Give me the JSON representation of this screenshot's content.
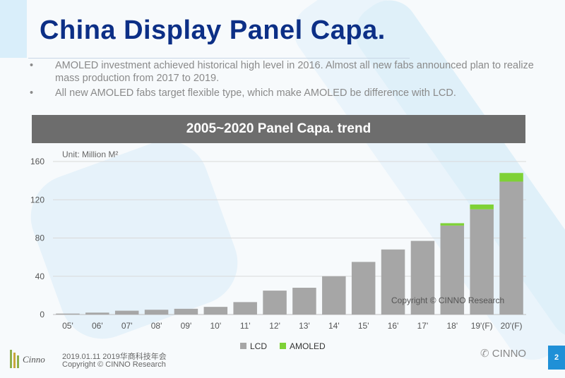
{
  "slide": {
    "title": "China Display Panel Capa.",
    "bullets": [
      "AMOLED investment achieved historical high level in 2016. Almost all new fabs announced plan to realize mass production from 2017 to 2019.",
      "All new AMOLED fabs target flexible type, which make AMOLED be difference with LCD."
    ],
    "bullet_marker": "•",
    "banner": "2005~2020 Panel Capa. trend",
    "unit": "Unit: Million M²",
    "watermark": "Copyright © CINNO Research",
    "footer_brand": "Cinno",
    "footer_date": "2019.01.11  2019华商科技年会",
    "footer_copyright": "Copyright © CINNO Research",
    "wechat_label": "CINNO",
    "page_number": "2"
  },
  "colors": {
    "title": "#0c2f86",
    "lcd": "#a6a6a6",
    "amoled": "#7ed136",
    "banner": "#6d6d6d",
    "accent": "#1f90d7"
  },
  "chart_data": {
    "type": "bar",
    "stacked": true,
    "title": "2005~2020 Panel Capa. trend",
    "unit": "Million M²",
    "categories": [
      "05'",
      "06'",
      "07'",
      "08'",
      "09'",
      "10'",
      "11'",
      "12'",
      "13'",
      "14'",
      "15'",
      "16'",
      "17'",
      "18'",
      "19'(F)",
      "20'(F)"
    ],
    "series": [
      {
        "name": "LCD",
        "color": "#a6a6a6",
        "values": [
          1,
          2,
          4,
          5,
          6,
          8,
          13,
          25,
          28,
          40,
          55,
          68,
          77,
          93,
          110,
          139
        ]
      },
      {
        "name": "AMOLED",
        "color": "#7ed136",
        "values": [
          0,
          0,
          0,
          0,
          0,
          0,
          0,
          0,
          0,
          0,
          0,
          0,
          0,
          2.5,
          5,
          9
        ]
      }
    ],
    "yticks": [
      0,
      40,
      80,
      120,
      160
    ],
    "ylim": [
      0,
      160
    ],
    "grid": true,
    "legend": "bottom-center"
  }
}
